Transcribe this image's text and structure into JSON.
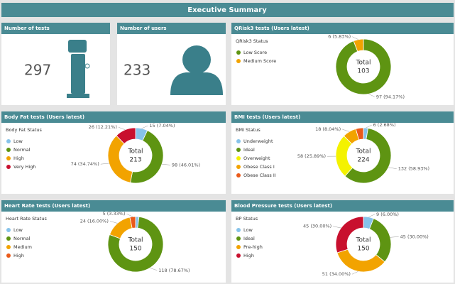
{
  "header": {
    "title": "Executive Summary"
  },
  "tiles": [
    {
      "title": "Number of tests",
      "value": "297"
    },
    {
      "title": "Number of users",
      "value": "233"
    }
  ],
  "chart_data": [
    {
      "type": "donut",
      "title": "QRisk3 tests (Users latest)",
      "legend_title": "QRisk3 Status",
      "categories": [
        "Low Score",
        "Medium Score"
      ],
      "values": [
        97,
        6
      ],
      "value_labels": [
        "97 (94.17%)",
        "6 (5.83%)"
      ],
      "colors": [
        "#5e9412",
        "#f2a300"
      ],
      "total_label": "Total",
      "total": 103
    },
    {
      "type": "donut",
      "title": "Body Fat tests (Users latest)",
      "legend_title": "Body Fat Status",
      "categories": [
        "Low",
        "Normal",
        "High",
        "Very High"
      ],
      "values": [
        15,
        98,
        74,
        26
      ],
      "value_labels": [
        "15 (7.04%)",
        "98 (46.01%)",
        "74 (34.74%)",
        "26 (12.21%)"
      ],
      "colors": [
        "#86c3ea",
        "#5e9412",
        "#f2a300",
        "#c8102e"
      ],
      "total_label": "Total",
      "total": 213
    },
    {
      "type": "donut",
      "title": "BMI tests (Users latest)",
      "legend_title": "BMI Status",
      "categories": [
        "Underweight",
        "Ideal",
        "Overweight",
        "Obese Class I",
        "Obese Class II"
      ],
      "values": [
        6,
        132,
        58,
        18,
        10
      ],
      "value_labels": [
        "6 (2.68%)",
        "132 (58.93%)",
        "58 (25.89%)",
        "18 (8.04%)",
        null
      ],
      "colors": [
        "#86c3ea",
        "#5e9412",
        "#f4f200",
        "#f2a300",
        "#ea5a1a"
      ],
      "total_label": "Total",
      "total": 224
    },
    {
      "type": "donut",
      "title": "Heart Rate tests (Users latest)",
      "legend_title": "Heart Rate Status",
      "categories": [
        "Low",
        "Normal",
        "Medium",
        "High"
      ],
      "values": [
        3,
        118,
        24,
        5
      ],
      "value_labels": [
        null,
        "118 (78.67%)",
        "24 (16.00%)",
        "5 (3.33%)"
      ],
      "colors": [
        "#86c3ea",
        "#5e9412",
        "#f2a300",
        "#ea5a1a"
      ],
      "total_label": "Total",
      "total": 150
    },
    {
      "type": "donut",
      "title": "Blood Pressure tests (Users latest)",
      "legend_title": "BP Status",
      "categories": [
        "Low",
        "Ideal",
        "Pre-high",
        "High"
      ],
      "values": [
        9,
        45,
        51,
        45
      ],
      "value_labels": [
        "9 (6.00%)",
        "45 (30.00%)",
        "51 (34.00%)",
        "45 (30.00%)"
      ],
      "colors": [
        "#86c3ea",
        "#5e9412",
        "#f2a300",
        "#c8102e"
      ],
      "total_label": "Total",
      "total": 150
    }
  ]
}
